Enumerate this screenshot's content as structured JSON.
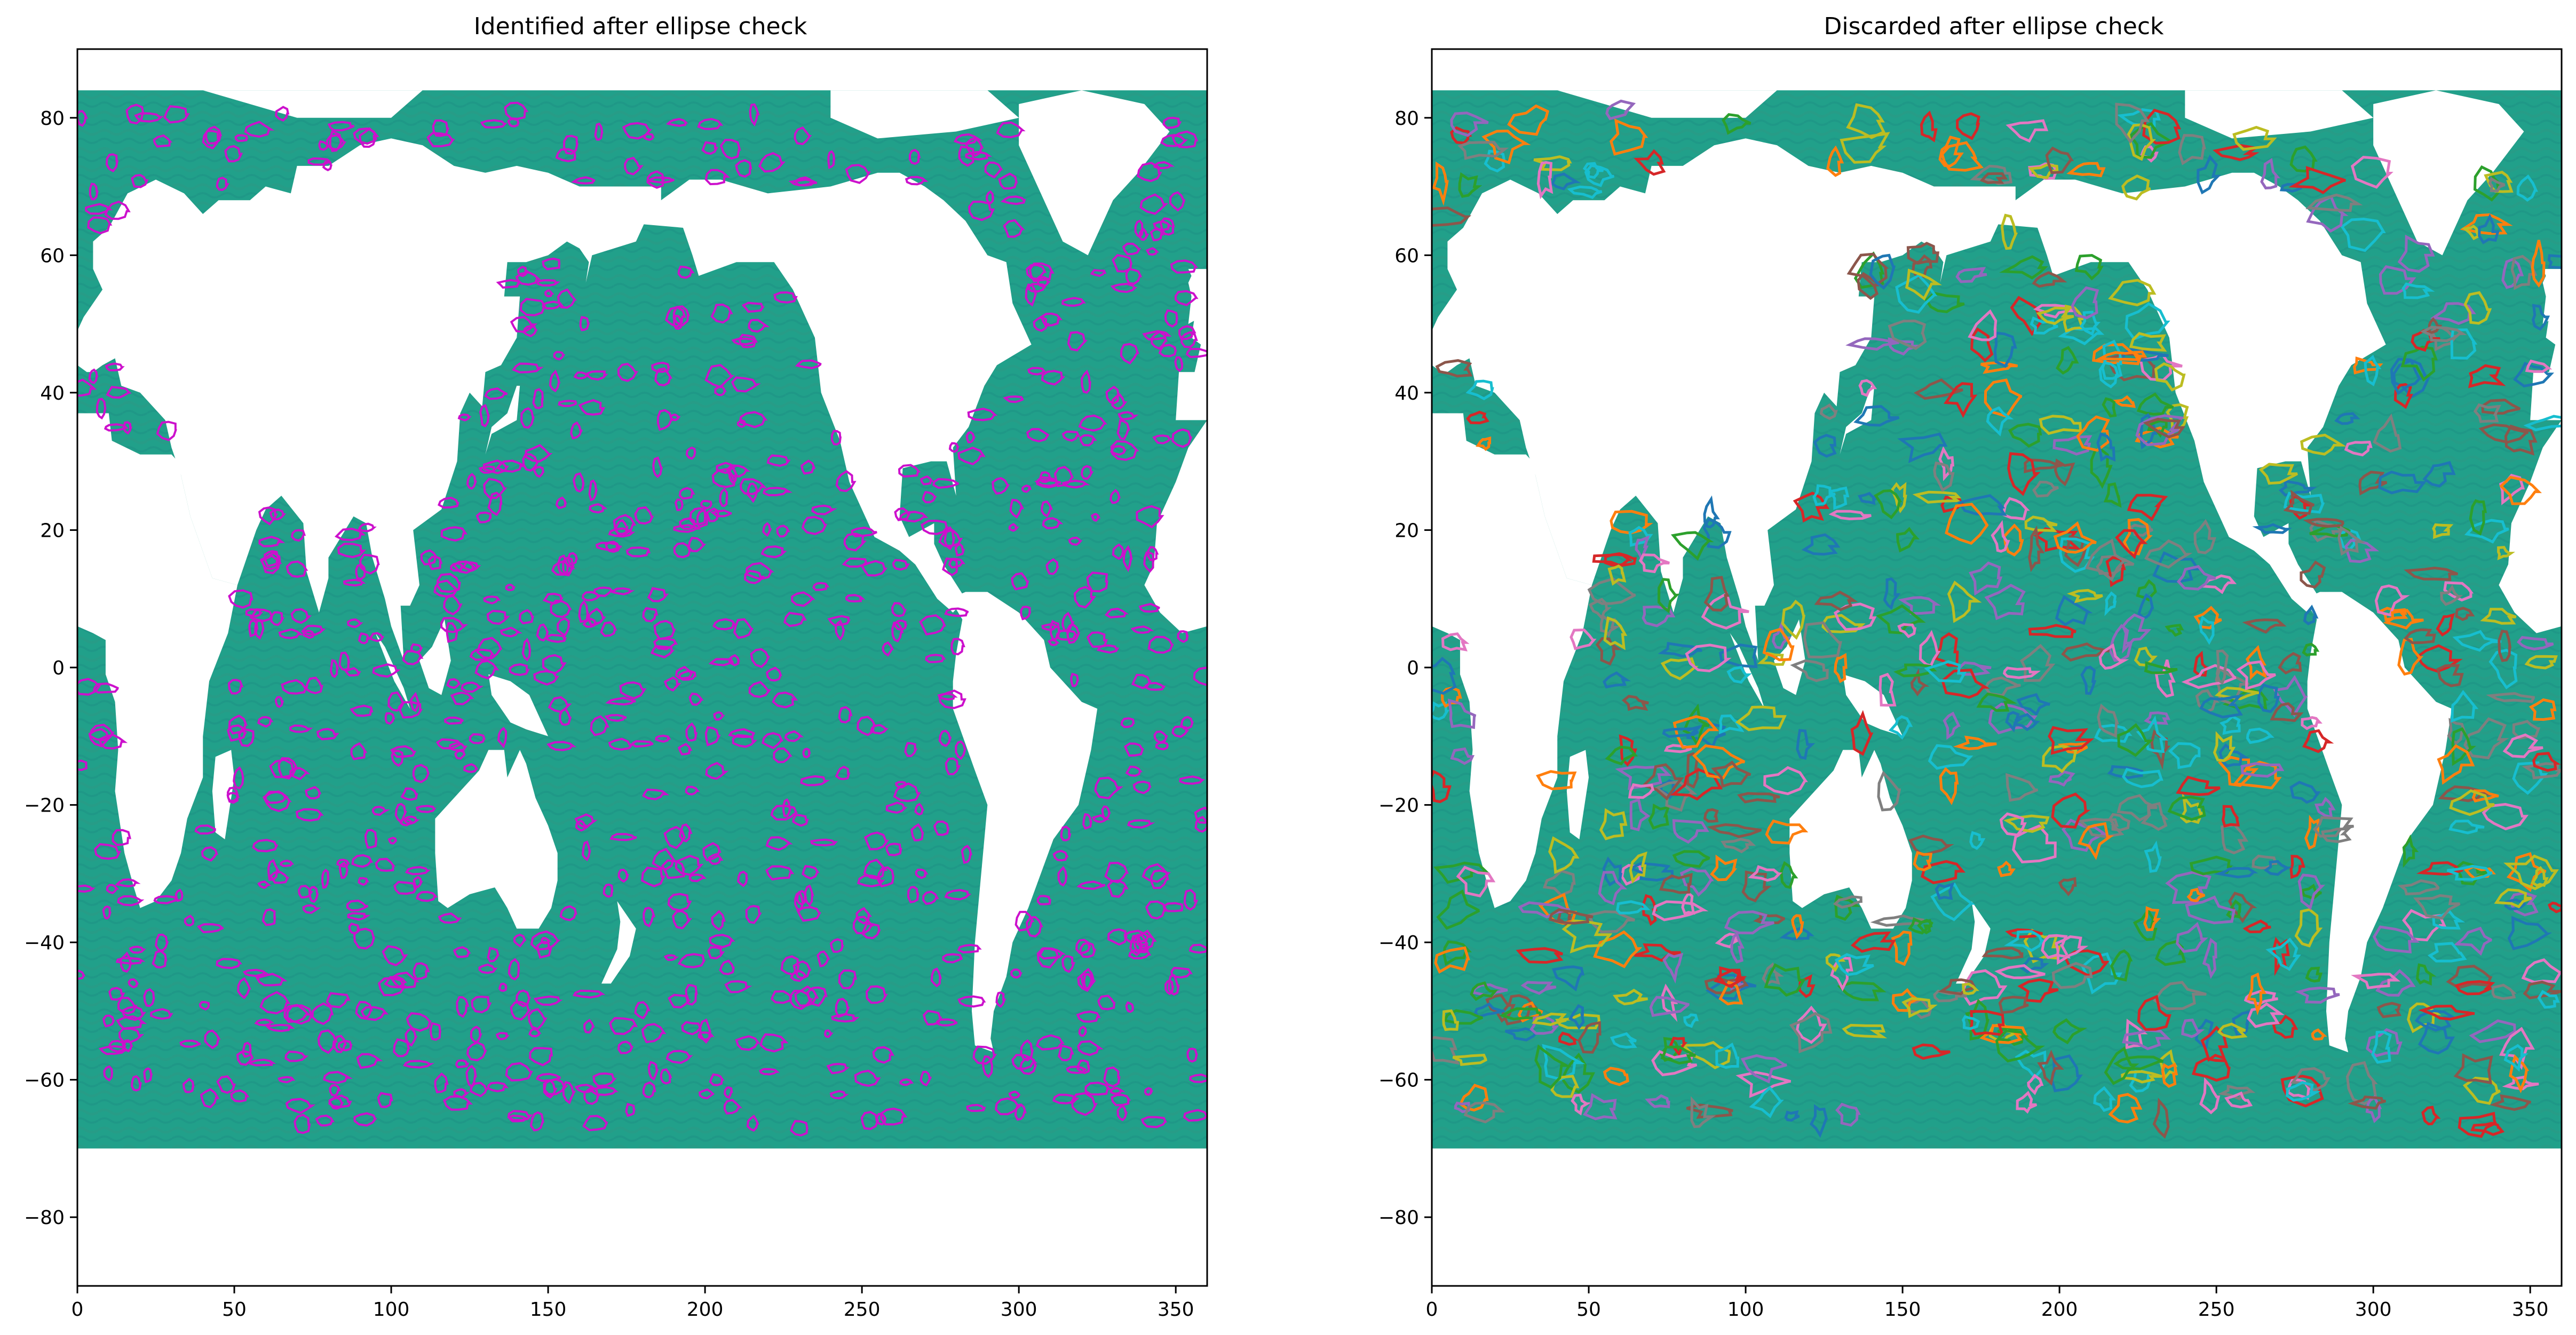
{
  "figure": {
    "panels": [
      {
        "id": "left",
        "title": "Identified after ellipse check",
        "contour_mode": "single"
      },
      {
        "id": "right",
        "title": "Discarded after ellipse check",
        "contour_mode": "multi"
      }
    ]
  },
  "chart_data": [
    {
      "type": "map",
      "title": "Identified after ellipse check",
      "xlim": [
        0,
        360
      ],
      "ylim": [
        -90,
        90
      ],
      "xticks": [
        0,
        50,
        100,
        150,
        200,
        250,
        300,
        350
      ],
      "yticks": [
        80,
        60,
        40,
        20,
        0,
        -20,
        -40,
        -60,
        -80
      ],
      "xtick_labels": [
        "0",
        "50",
        "100",
        "150",
        "200",
        "250",
        "300",
        "350"
      ],
      "ytick_labels": [
        "80",
        "60",
        "40",
        "20",
        "0",
        "−20",
        "−40",
        "−60",
        "−80"
      ],
      "ocean_lat_range": [
        -70,
        84
      ],
      "contour_color": "#cc11cc"
    },
    {
      "type": "map",
      "title": "Discarded after ellipse check",
      "xlim": [
        0,
        360
      ],
      "ylim": [
        -90,
        90
      ],
      "xticks": [
        0,
        50,
        100,
        150,
        200,
        250,
        300,
        350
      ],
      "yticks": [
        80,
        60,
        40,
        20,
        0,
        -20,
        -40,
        -60,
        -80
      ],
      "xtick_labels": [
        "0",
        "50",
        "100",
        "150",
        "200",
        "250",
        "300",
        "350"
      ],
      "ytick_labels": [
        "80",
        "60",
        "40",
        "20",
        "0",
        "−20",
        "−40",
        "−60",
        "−80"
      ],
      "ocean_lat_range": [
        -70,
        84
      ],
      "contour_colors": [
        "#1f77b4",
        "#ff7f0e",
        "#2ca02c",
        "#d62728",
        "#9467bd",
        "#8c564b",
        "#e377c2",
        "#7f7f7f",
        "#bcbd22",
        "#17becf"
      ]
    }
  ],
  "colors": {
    "ocean": "#21a08a",
    "land": "#ffffff",
    "axes": "#000000"
  }
}
